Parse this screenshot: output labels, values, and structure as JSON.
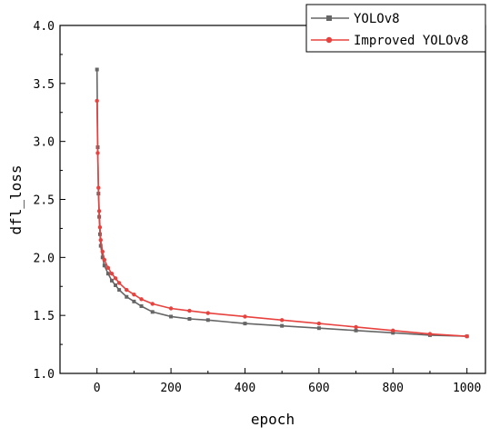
{
  "chart_data": {
    "type": "line",
    "xlabel": "epoch",
    "ylabel": "dfl_loss",
    "xlim": [
      -100,
      1050
    ],
    "ylim": [
      1.0,
      4.0
    ],
    "x_ticks": [
      0,
      200,
      400,
      600,
      800,
      1000
    ],
    "x_tick_labels": [
      "0",
      "200",
      "400",
      "600",
      "800",
      "1000"
    ],
    "y_ticks": [
      1.0,
      1.5,
      2.0,
      2.5,
      3.0,
      3.5,
      4.0
    ],
    "y_tick_labels": [
      "1.0",
      "1.5",
      "2.0",
      "2.5",
      "3.0",
      "3.5",
      "4.0"
    ],
    "legend_position": "top-right",
    "grid": false,
    "series": [
      {
        "name": "YOLOv8",
        "color": "#666666",
        "marker": "square",
        "x": [
          0,
          2,
          4,
          6,
          8,
          10,
          15,
          20,
          30,
          40,
          50,
          60,
          80,
          100,
          120,
          150,
          200,
          250,
          300,
          400,
          500,
          600,
          700,
          800,
          900,
          1000
        ],
        "y": [
          3.62,
          2.95,
          2.55,
          2.35,
          2.2,
          2.1,
          2.0,
          1.93,
          1.86,
          1.8,
          1.76,
          1.72,
          1.66,
          1.62,
          1.58,
          1.53,
          1.49,
          1.47,
          1.46,
          1.43,
          1.41,
          1.39,
          1.37,
          1.35,
          1.33,
          1.32
        ]
      },
      {
        "name": "Improved YOLOv8",
        "color": "#e8423f",
        "marker": "circle",
        "x": [
          0,
          2,
          4,
          6,
          8,
          10,
          15,
          20,
          30,
          40,
          50,
          60,
          80,
          100,
          120,
          150,
          200,
          250,
          300,
          400,
          500,
          600,
          700,
          800,
          900,
          1000
        ],
        "y": [
          3.35,
          2.9,
          2.6,
          2.4,
          2.26,
          2.15,
          2.05,
          1.98,
          1.91,
          1.86,
          1.82,
          1.78,
          1.72,
          1.68,
          1.64,
          1.6,
          1.56,
          1.54,
          1.52,
          1.49,
          1.46,
          1.43,
          1.4,
          1.37,
          1.34,
          1.32
        ]
      }
    ]
  }
}
